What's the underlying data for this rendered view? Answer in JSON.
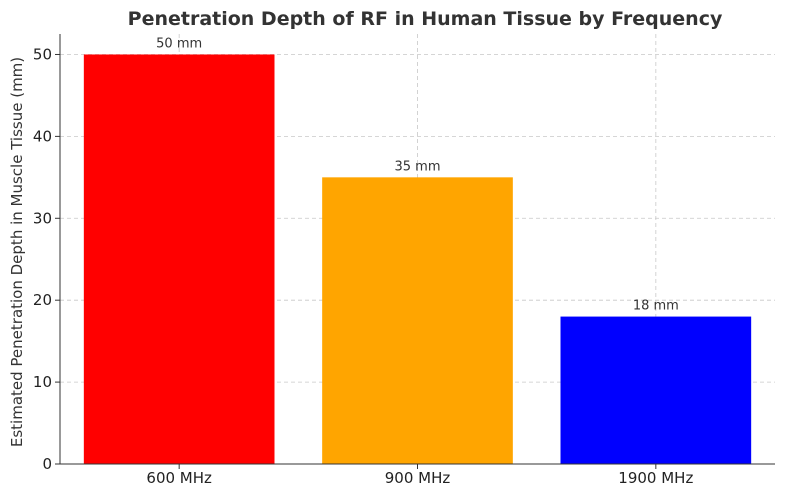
{
  "chart_data": {
    "type": "bar",
    "title": "Penetration Depth of RF in Human Tissue by Frequency",
    "xlabel": "",
    "ylabel": "Estimated Penetration Depth in Muscle Tissue (mm)",
    "categories": [
      "600 MHz",
      "900 MHz",
      "1900 MHz"
    ],
    "values": [
      50,
      35,
      18
    ],
    "data_labels": [
      "50 mm",
      "35 mm",
      "18 mm"
    ],
    "colors": [
      "#ff0000",
      "#ffa500",
      "#0000ff"
    ],
    "ylim": [
      0,
      52.5
    ],
    "yticks": [
      0,
      10,
      20,
      30,
      40,
      50
    ],
    "grid": true,
    "legend": "none"
  }
}
